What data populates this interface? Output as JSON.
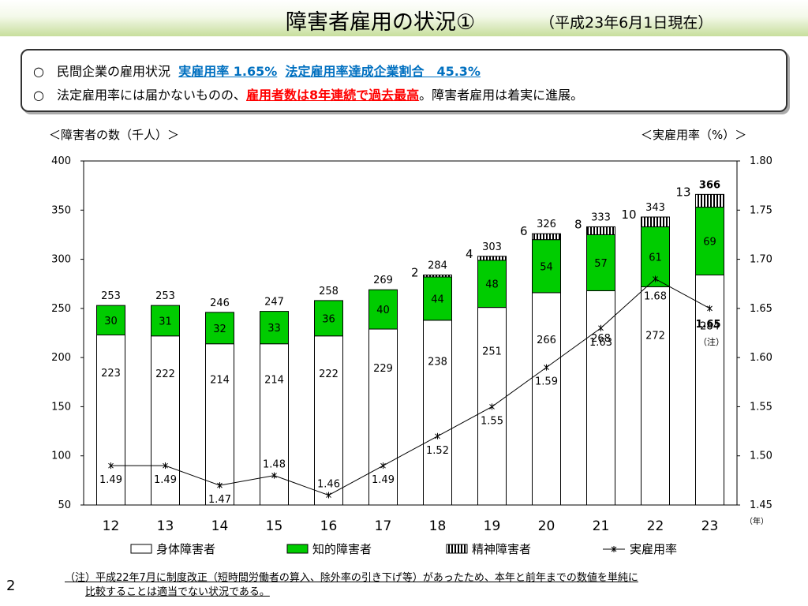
{
  "header": {
    "title": "障害者雇用の状況①",
    "subtitle": "（平成23年6月1日現在）"
  },
  "summary": {
    "bullet": "○",
    "line1_prefix": "民間企業の雇用状況",
    "line1_rate": "実雇用率 1.65%",
    "line1_achieve": "法定雇用率達成企業割合　45.3%",
    "line2_prefix": "法定雇用率には届かないものの、",
    "line2_highlight": "雇用者数は8年連続で過去最高",
    "line2_suffix": "。障害者雇用は着実に進展。"
  },
  "left_axis_title": "＜障害者の数（千人）＞",
  "right_axis_title": "＜実雇用率（%）＞",
  "page_number": "2",
  "note": {
    "line1": "（注）平成22年7月に制度改正（短時間労働者の算入、除外率の引き下げ等）があったため、本年と前年までの数値を単純に",
    "line2": "比較することは適当でない状況である。"
  },
  "colors": {
    "physical": "#ffffff",
    "intellectual": "#00cc00",
    "mental": "#000000",
    "line": "#000000"
  },
  "chart_data": {
    "type": "bar",
    "stacked": true,
    "categories": [
      "12",
      "13",
      "14",
      "15",
      "16",
      "17",
      "18",
      "19",
      "20",
      "21",
      "22",
      "23"
    ],
    "x_unit": "（年）",
    "series": [
      {
        "name": "身体障害者",
        "values": [
          223,
          222,
          214,
          214,
          222,
          229,
          238,
          251,
          266,
          268,
          272,
          284
        ],
        "color": "#ffffff"
      },
      {
        "name": "知的障害者",
        "values": [
          30,
          31,
          32,
          33,
          36,
          40,
          44,
          48,
          54,
          57,
          61,
          69
        ],
        "color": "#00cc00"
      },
      {
        "name": "精神障害者",
        "values": [
          null,
          null,
          null,
          null,
          null,
          null,
          2,
          4,
          6,
          8,
          10,
          13
        ],
        "pattern": "vertical-stripes"
      }
    ],
    "totals": [
      253,
      253,
      246,
      247,
      258,
      269,
      284,
      303,
      326,
      333,
      343,
      366
    ],
    "line_series": {
      "name": "実雇用率",
      "axis": "right",
      "values": [
        1.49,
        1.49,
        1.47,
        1.48,
        1.46,
        1.49,
        1.52,
        1.55,
        1.59,
        1.63,
        1.68,
        1.65
      ],
      "last_point_note": "（注）"
    },
    "ylim_left": [
      50,
      400
    ],
    "yticks_left": [
      50,
      100,
      150,
      200,
      250,
      300,
      350,
      400
    ],
    "ylim_right": [
      1.45,
      1.8
    ],
    "yticks_right": [
      "1.45",
      "1.50",
      "1.55",
      "1.60",
      "1.65",
      "1.70",
      "1.75",
      "1.80"
    ],
    "legend_placement": "bottom",
    "grid": false
  }
}
